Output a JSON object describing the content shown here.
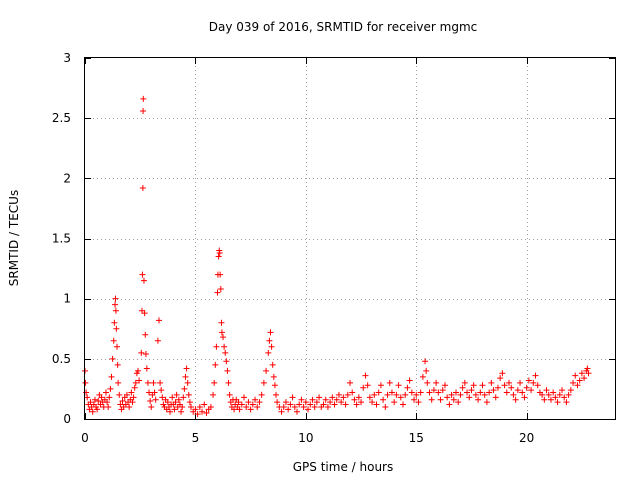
{
  "chart_data": {
    "type": "scatter",
    "title": "Day 039 of 2016, SRMTID for receiver mgmc",
    "xlabel": "GPS time / hours",
    "ylabel": "SRMTID / TECUs",
    "xlim": [
      0,
      24
    ],
    "ylim": [
      0,
      3
    ],
    "xticks": [
      0,
      5,
      10,
      15,
      20
    ],
    "yticks": [
      0,
      0.5,
      1,
      1.5,
      2,
      2.5,
      3
    ],
    "xtick_labels": [
      "0",
      "5",
      "10",
      "15",
      "20"
    ],
    "ytick_labels": [
      "0",
      "0.5",
      "1",
      "1.5",
      "2",
      "2.5",
      "3"
    ],
    "grid": true,
    "marker": "+",
    "series": [
      {
        "name": "SRMTID",
        "color": "#ff0000",
        "points": [
          [
            0.0,
            0.4
          ],
          [
            0.02,
            0.3
          ],
          [
            0.05,
            0.22
          ],
          [
            0.1,
            0.18
          ],
          [
            0.15,
            0.12
          ],
          [
            0.2,
            0.08
          ],
          [
            0.25,
            0.14
          ],
          [
            0.3,
            0.1
          ],
          [
            0.35,
            0.06
          ],
          [
            0.4,
            0.12
          ],
          [
            0.45,
            0.16
          ],
          [
            0.5,
            0.1
          ],
          [
            0.55,
            0.08
          ],
          [
            0.6,
            0.15
          ],
          [
            0.65,
            0.2
          ],
          [
            0.7,
            0.12
          ],
          [
            0.75,
            0.18
          ],
          [
            0.8,
            0.14
          ],
          [
            0.85,
            0.1
          ],
          [
            0.9,
            0.16
          ],
          [
            0.95,
            0.22
          ],
          [
            1.0,
            0.14
          ],
          [
            1.05,
            0.1
          ],
          [
            1.1,
            0.18
          ],
          [
            1.15,
            0.25
          ],
          [
            1.2,
            0.35
          ],
          [
            1.25,
            0.5
          ],
          [
            1.3,
            0.65
          ],
          [
            1.33,
            0.8
          ],
          [
            1.36,
            0.95
          ],
          [
            1.38,
            1.0
          ],
          [
            1.4,
            0.9
          ],
          [
            1.42,
            0.75
          ],
          [
            1.45,
            0.6
          ],
          [
            1.48,
            0.45
          ],
          [
            1.5,
            0.3
          ],
          [
            1.55,
            0.2
          ],
          [
            1.6,
            0.12
          ],
          [
            1.65,
            0.08
          ],
          [
            1.7,
            0.15
          ],
          [
            1.75,
            0.1
          ],
          [
            1.8,
            0.18
          ],
          [
            1.85,
            0.12
          ],
          [
            1.9,
            0.2
          ],
          [
            1.95,
            0.14
          ],
          [
            2.0,
            0.1
          ],
          [
            2.05,
            0.16
          ],
          [
            2.1,
            0.22
          ],
          [
            2.15,
            0.14
          ],
          [
            2.2,
            0.18
          ],
          [
            2.25,
            0.26
          ],
          [
            2.3,
            0.3
          ],
          [
            2.35,
            0.38
          ],
          [
            2.4,
            0.4
          ],
          [
            2.45,
            0.32
          ],
          [
            2.55,
            0.55
          ],
          [
            2.58,
            0.9
          ],
          [
            2.6,
            1.2
          ],
          [
            2.62,
            1.92
          ],
          [
            2.63,
            2.56
          ],
          [
            2.64,
            2.66
          ],
          [
            2.67,
            1.15
          ],
          [
            2.7,
            0.88
          ],
          [
            2.73,
            0.7
          ],
          [
            2.76,
            0.54
          ],
          [
            2.8,
            0.42
          ],
          [
            2.85,
            0.3
          ],
          [
            2.9,
            0.22
          ],
          [
            2.95,
            0.15
          ],
          [
            3.0,
            0.1
          ],
          [
            3.05,
            0.2
          ],
          [
            3.1,
            0.3
          ],
          [
            3.15,
            0.22
          ],
          [
            3.2,
            0.16
          ],
          [
            3.3,
            0.65
          ],
          [
            3.35,
            0.82
          ],
          [
            3.4,
            0.3
          ],
          [
            3.45,
            0.24
          ],
          [
            3.5,
            0.18
          ],
          [
            3.55,
            0.12
          ],
          [
            3.6,
            0.1
          ],
          [
            3.65,
            0.16
          ],
          [
            3.7,
            0.08
          ],
          [
            3.75,
            0.14
          ],
          [
            3.8,
            0.1
          ],
          [
            3.85,
            0.06
          ],
          [
            3.9,
            0.12
          ],
          [
            3.95,
            0.18
          ],
          [
            4.0,
            0.12
          ],
          [
            4.05,
            0.08
          ],
          [
            4.1,
            0.14
          ],
          [
            4.15,
            0.2
          ],
          [
            4.2,
            0.1
          ],
          [
            4.25,
            0.16
          ],
          [
            4.3,
            0.12
          ],
          [
            4.35,
            0.06
          ],
          [
            4.4,
            0.1
          ],
          [
            4.45,
            0.18
          ],
          [
            4.5,
            0.25
          ],
          [
            4.55,
            0.35
          ],
          [
            4.6,
            0.42
          ],
          [
            4.65,
            0.3
          ],
          [
            4.7,
            0.2
          ],
          [
            4.75,
            0.14
          ],
          [
            4.8,
            0.1
          ],
          [
            4.9,
            0.06
          ],
          [
            5.0,
            0.08
          ],
          [
            5.1,
            0.04
          ],
          [
            5.2,
            0.1
          ],
          [
            5.3,
            0.06
          ],
          [
            5.4,
            0.12
          ],
          [
            5.5,
            0.05
          ],
          [
            5.6,
            0.08
          ],
          [
            5.7,
            0.1
          ],
          [
            5.8,
            0.2
          ],
          [
            5.85,
            0.3
          ],
          [
            5.9,
            0.45
          ],
          [
            5.95,
            0.6
          ],
          [
            6.0,
            1.05
          ],
          [
            6.02,
            1.2
          ],
          [
            6.05,
            1.35
          ],
          [
            6.08,
            1.4
          ],
          [
            6.1,
            1.38
          ],
          [
            6.12,
            1.2
          ],
          [
            6.15,
            1.08
          ],
          [
            6.18,
            0.8
          ],
          [
            6.2,
            0.72
          ],
          [
            6.25,
            0.68
          ],
          [
            6.3,
            0.6
          ],
          [
            6.35,
            0.55
          ],
          [
            6.4,
            0.48
          ],
          [
            6.45,
            0.4
          ],
          [
            6.5,
            0.3
          ],
          [
            6.55,
            0.2
          ],
          [
            6.6,
            0.14
          ],
          [
            6.65,
            0.1
          ],
          [
            6.7,
            0.16
          ],
          [
            6.75,
            0.08
          ],
          [
            6.8,
            0.12
          ],
          [
            6.85,
            0.16
          ],
          [
            6.9,
            0.1
          ],
          [
            6.95,
            0.14
          ],
          [
            7.0,
            0.08
          ],
          [
            7.1,
            0.12
          ],
          [
            7.2,
            0.18
          ],
          [
            7.3,
            0.1
          ],
          [
            7.4,
            0.14
          ],
          [
            7.5,
            0.08
          ],
          [
            7.6,
            0.12
          ],
          [
            7.7,
            0.16
          ],
          [
            7.8,
            0.1
          ],
          [
            7.9,
            0.14
          ],
          [
            8.0,
            0.2
          ],
          [
            8.1,
            0.3
          ],
          [
            8.2,
            0.4
          ],
          [
            8.3,
            0.55
          ],
          [
            8.35,
            0.65
          ],
          [
            8.4,
            0.72
          ],
          [
            8.45,
            0.6
          ],
          [
            8.5,
            0.45
          ],
          [
            8.55,
            0.35
          ],
          [
            8.6,
            0.28
          ],
          [
            8.65,
            0.2
          ],
          [
            8.7,
            0.14
          ],
          [
            8.8,
            0.1
          ],
          [
            8.9,
            0.06
          ],
          [
            9.0,
            0.1
          ],
          [
            9.1,
            0.14
          ],
          [
            9.2,
            0.08
          ],
          [
            9.3,
            0.12
          ],
          [
            9.4,
            0.18
          ],
          [
            9.5,
            0.1
          ],
          [
            9.6,
            0.06
          ],
          [
            9.7,
            0.12
          ],
          [
            9.8,
            0.16
          ],
          [
            9.9,
            0.1
          ],
          [
            10.0,
            0.14
          ],
          [
            10.1,
            0.08
          ],
          [
            10.2,
            0.12
          ],
          [
            10.3,
            0.16
          ],
          [
            10.4,
            0.1
          ],
          [
            10.5,
            0.14
          ],
          [
            10.6,
            0.18
          ],
          [
            10.7,
            0.1
          ],
          [
            10.8,
            0.12
          ],
          [
            10.9,
            0.16
          ],
          [
            11.0,
            0.1
          ],
          [
            11.1,
            0.14
          ],
          [
            11.2,
            0.18
          ],
          [
            11.3,
            0.12
          ],
          [
            11.4,
            0.16
          ],
          [
            11.5,
            0.2
          ],
          [
            11.6,
            0.14
          ],
          [
            11.7,
            0.18
          ],
          [
            11.8,
            0.12
          ],
          [
            11.9,
            0.2
          ],
          [
            12.0,
            0.3
          ],
          [
            12.1,
            0.22
          ],
          [
            12.2,
            0.16
          ],
          [
            12.3,
            0.12
          ],
          [
            12.4,
            0.18
          ],
          [
            12.5,
            0.14
          ],
          [
            12.6,
            0.26
          ],
          [
            12.7,
            0.36
          ],
          [
            12.8,
            0.28
          ],
          [
            12.9,
            0.18
          ],
          [
            13.0,
            0.14
          ],
          [
            13.1,
            0.2
          ],
          [
            13.2,
            0.12
          ],
          [
            13.3,
            0.22
          ],
          [
            13.4,
            0.28
          ],
          [
            13.5,
            0.16
          ],
          [
            13.6,
            0.1
          ],
          [
            13.7,
            0.2
          ],
          [
            13.8,
            0.3
          ],
          [
            13.9,
            0.22
          ],
          [
            14.0,
            0.14
          ],
          [
            14.1,
            0.2
          ],
          [
            14.2,
            0.28
          ],
          [
            14.3,
            0.18
          ],
          [
            14.4,
            0.12
          ],
          [
            14.5,
            0.2
          ],
          [
            14.6,
            0.26
          ],
          [
            14.7,
            0.32
          ],
          [
            14.8,
            0.22
          ],
          [
            14.9,
            0.16
          ],
          [
            15.0,
            0.2
          ],
          [
            15.1,
            0.14
          ],
          [
            15.2,
            0.22
          ],
          [
            15.3,
            0.35
          ],
          [
            15.4,
            0.48
          ],
          [
            15.45,
            0.4
          ],
          [
            15.5,
            0.3
          ],
          [
            15.6,
            0.22
          ],
          [
            15.7,
            0.16
          ],
          [
            15.8,
            0.24
          ],
          [
            15.9,
            0.3
          ],
          [
            16.0,
            0.22
          ],
          [
            16.1,
            0.16
          ],
          [
            16.2,
            0.24
          ],
          [
            16.3,
            0.28
          ],
          [
            16.4,
            0.18
          ],
          [
            16.5,
            0.12
          ],
          [
            16.6,
            0.2
          ],
          [
            16.7,
            0.16
          ],
          [
            16.8,
            0.22
          ],
          [
            16.9,
            0.14
          ],
          [
            17.0,
            0.2
          ],
          [
            17.1,
            0.26
          ],
          [
            17.2,
            0.3
          ],
          [
            17.3,
            0.22
          ],
          [
            17.4,
            0.18
          ],
          [
            17.5,
            0.24
          ],
          [
            17.6,
            0.28
          ],
          [
            17.7,
            0.2
          ],
          [
            17.8,
            0.16
          ],
          [
            17.9,
            0.22
          ],
          [
            18.0,
            0.28
          ],
          [
            18.1,
            0.2
          ],
          [
            18.2,
            0.14
          ],
          [
            18.3,
            0.22
          ],
          [
            18.4,
            0.3
          ],
          [
            18.5,
            0.24
          ],
          [
            18.6,
            0.18
          ],
          [
            18.7,
            0.26
          ],
          [
            18.8,
            0.34
          ],
          [
            18.9,
            0.38
          ],
          [
            19.0,
            0.28
          ],
          [
            19.1,
            0.22
          ],
          [
            19.2,
            0.3
          ],
          [
            19.3,
            0.26
          ],
          [
            19.4,
            0.2
          ],
          [
            19.5,
            0.16
          ],
          [
            19.6,
            0.24
          ],
          [
            19.7,
            0.3
          ],
          [
            19.8,
            0.22
          ],
          [
            19.9,
            0.18
          ],
          [
            20.0,
            0.26
          ],
          [
            20.1,
            0.32
          ],
          [
            20.2,
            0.24
          ],
          [
            20.3,
            0.3
          ],
          [
            20.4,
            0.36
          ],
          [
            20.5,
            0.28
          ],
          [
            20.6,
            0.22
          ],
          [
            20.7,
            0.2
          ],
          [
            20.8,
            0.16
          ],
          [
            20.9,
            0.24
          ],
          [
            21.0,
            0.2
          ],
          [
            21.1,
            0.16
          ],
          [
            21.2,
            0.22
          ],
          [
            21.3,
            0.18
          ],
          [
            21.4,
            0.14
          ],
          [
            21.5,
            0.2
          ],
          [
            21.6,
            0.24
          ],
          [
            21.7,
            0.18
          ],
          [
            21.8,
            0.14
          ],
          [
            21.9,
            0.2
          ],
          [
            22.0,
            0.24
          ],
          [
            22.1,
            0.3
          ],
          [
            22.2,
            0.36
          ],
          [
            22.3,
            0.28
          ],
          [
            22.4,
            0.32
          ],
          [
            22.5,
            0.38
          ],
          [
            22.6,
            0.34
          ],
          [
            22.7,
            0.4
          ],
          [
            22.75,
            0.42
          ],
          [
            22.8,
            0.38
          ]
        ]
      }
    ]
  }
}
